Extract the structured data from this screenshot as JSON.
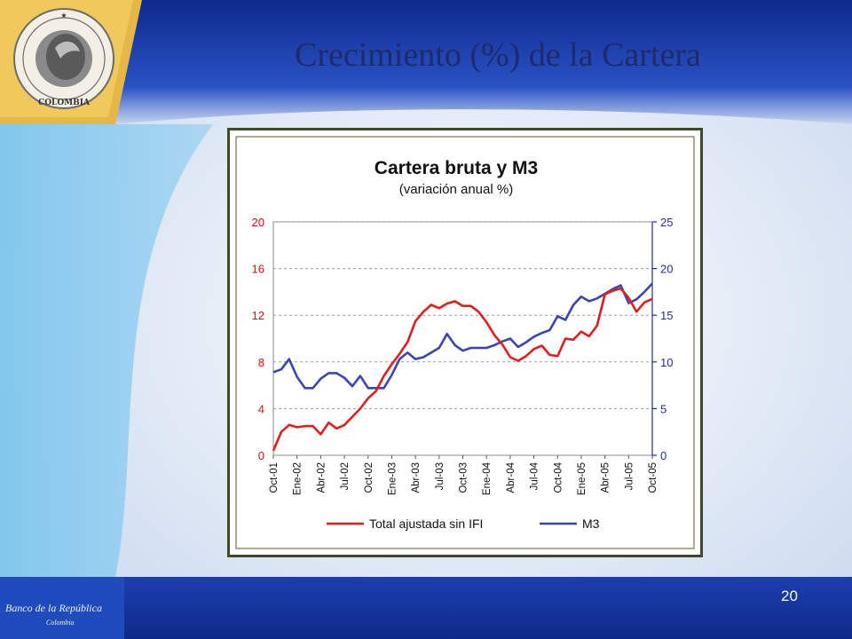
{
  "slide": {
    "title": "Crecimiento (%) de la Cartera",
    "number": "20",
    "footer_logo": "Banco de la República",
    "footer_sub": "Colombia",
    "seal_text": "BANCO DE LA REPUBLICA",
    "seal_bottom": "COLOMBIA"
  },
  "colors": {
    "header_blue": "#1c3fa0",
    "gold": "#e5b43c",
    "red_series": "#e01e1e",
    "blue_series": "#3a45b0",
    "left_axis": "#d01010",
    "right_axis": "#1f2f9a"
  },
  "chart_data": {
    "type": "line",
    "title": "Cartera bruta y M3",
    "subtitle": "(variación anual %)",
    "x_tick_labels": [
      "Oct-01",
      "Ene-02",
      "Abr-02",
      "Jul-02",
      "Oct-02",
      "Ene-03",
      "Abr-03",
      "Jul-03",
      "Oct-03",
      "Ene-04",
      "Abr-04",
      "Jul-04",
      "Oct-04",
      "Ene-05",
      "Abr-05",
      "Jul-05",
      "Oct-05"
    ],
    "y_left": {
      "min": 0,
      "max": 20,
      "ticks": [
        0,
        4,
        8,
        12,
        16,
        20
      ]
    },
    "y_right": {
      "min": 0,
      "max": 25,
      "ticks": [
        0,
        5,
        10,
        15,
        20,
        25
      ]
    },
    "grid": "horizontal dashed",
    "legend_position": "bottom",
    "series": [
      {
        "name": "Total ajustada sin IFI",
        "axis": "left",
        "color": "#e01e1e",
        "values": [
          0.4,
          2.0,
          2.6,
          2.4,
          2.5,
          2.5,
          1.8,
          2.8,
          2.3,
          2.6,
          3.3,
          4.0,
          4.9,
          5.5,
          6.8,
          7.8,
          8.7,
          9.7,
          11.5,
          12.3,
          12.9,
          12.6,
          13.0,
          13.2,
          12.8,
          12.8,
          12.3,
          11.4,
          10.3,
          9.5,
          8.4,
          8.1,
          8.5,
          9.1,
          9.4,
          8.6,
          8.5,
          10.0,
          9.9,
          10.6,
          10.2,
          11.1,
          13.8,
          14.1,
          14.3,
          13.5,
          12.3,
          13.1,
          13.4
        ]
      },
      {
        "name": "M3",
        "axis": "right",
        "color": "#3a45b0",
        "values": [
          8.9,
          9.2,
          10.3,
          8.4,
          7.2,
          7.2,
          8.2,
          8.8,
          8.8,
          8.3,
          7.4,
          8.5,
          7.2,
          7.2,
          7.2,
          8.6,
          10.3,
          11.0,
          10.3,
          10.5,
          11.0,
          11.5,
          13.0,
          11.8,
          11.2,
          11.5,
          11.5,
          11.5,
          11.8,
          12.2,
          12.5,
          11.6,
          12.1,
          12.7,
          13.1,
          13.4,
          14.9,
          14.5,
          16.1,
          17.0,
          16.5,
          16.8,
          17.3,
          17.8,
          18.2,
          16.3,
          16.7,
          17.5,
          18.4
        ]
      }
    ]
  }
}
